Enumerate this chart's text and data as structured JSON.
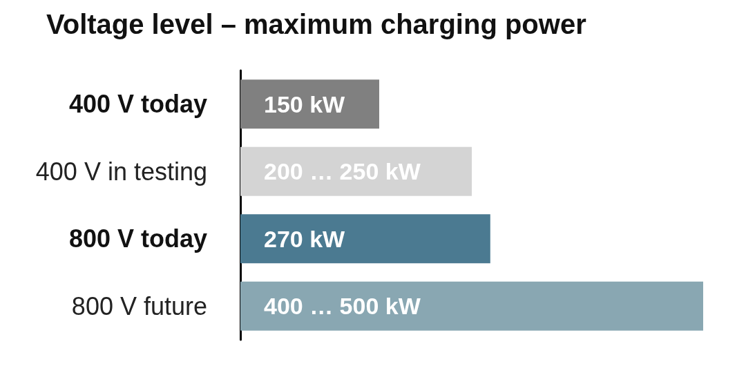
{
  "chart_data": {
    "type": "bar",
    "orientation": "horizontal",
    "title": "Voltage level – maximum charging power",
    "categories": [
      "400 V today",
      "400 V in testing",
      "800 V today",
      "800 V future"
    ],
    "values": [
      150,
      250,
      270,
      500
    ],
    "value_labels": [
      "150 kW",
      "200 … 250 kW",
      "270 kW",
      "400 … 500 kW"
    ],
    "colors": [
      "#808080",
      "#d4d4d4",
      "#4b7a91",
      "#89a7b2"
    ]
  }
}
